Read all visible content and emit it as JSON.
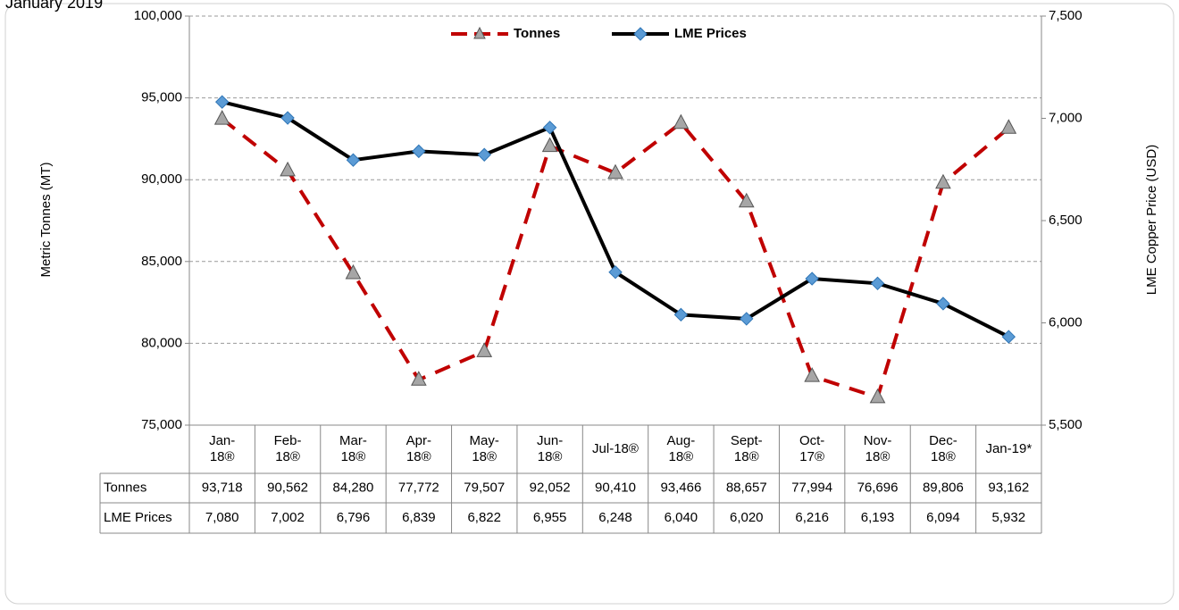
{
  "chart_data": {
    "type": "line",
    "title": "January 2019",
    "ylabel": "Metric Tonnes (MT)",
    "y2label": "LME Copper Price (USD)",
    "categories": [
      "Jan-\n18®",
      "Feb-\n18®",
      "Mar-\n18®",
      "Apr-\n18®",
      "May-\n18®",
      "Jun-\n18®",
      "Jul-18®",
      "Aug-\n18®",
      "Sept-\n18®",
      "Oct-\n17®",
      "Nov-\n18®",
      "Dec-\n18®",
      "Jan-19*"
    ],
    "series": [
      {
        "name": "Tonnes",
        "color": "#c00000",
        "marker_color": "#a6a6a6",
        "axis": "y",
        "values": [
          93718,
          90562,
          84280,
          77772,
          79507,
          92052,
          90410,
          93466,
          88657,
          77994,
          76696,
          89806,
          93162
        ],
        "value_labels": [
          "93,718",
          "90,562",
          "84,280",
          "77,772",
          "79,507",
          "92,052",
          "90,410",
          "93,466",
          "88,657",
          "77,994",
          "76,696",
          "89,806",
          "93,162"
        ]
      },
      {
        "name": "LME Prices",
        "color": "#000000",
        "marker_color": "#5b9bd5",
        "axis": "y2",
        "values": [
          7080,
          7002,
          6796,
          6839,
          6822,
          6955,
          6248,
          6040,
          6020,
          6216,
          6193,
          6094,
          5932
        ],
        "value_labels": [
          "7,080",
          "7,002",
          "6,796",
          "6,839",
          "6,822",
          "6,955",
          "6,248",
          "6,040",
          "6,020",
          "6,216",
          "6,193",
          "6,094",
          "5,932"
        ]
      }
    ],
    "ylim": [
      75000,
      100000
    ],
    "yticks": [
      {
        "value": 75000,
        "label": "75,000"
      },
      {
        "value": 80000,
        "label": "80,000"
      },
      {
        "value": 85000,
        "label": "85,000"
      },
      {
        "value": 90000,
        "label": "90,000"
      },
      {
        "value": 95000,
        "label": "95,000"
      },
      {
        "value": 100000,
        "label": "100,000"
      }
    ],
    "y2lim": [
      5500,
      7500
    ],
    "y2ticks": [
      {
        "value": 5500,
        "label": "5,500"
      },
      {
        "value": 6000,
        "label": "6,000"
      },
      {
        "value": 6500,
        "label": "6,500"
      },
      {
        "value": 7000,
        "label": "7,000"
      },
      {
        "value": 7500,
        "label": "7,500"
      }
    ],
    "grid": true,
    "legend": "top"
  }
}
